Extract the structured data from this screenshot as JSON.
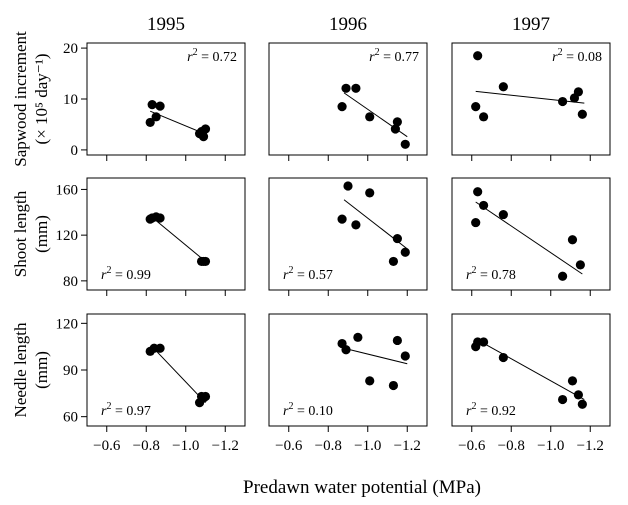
{
  "chart_data": {
    "type": "scatter",
    "xlabel": "Predawn water potential (MPa)",
    "x_ticks": [
      -0.6,
      -0.8,
      -1.0,
      -1.2
    ],
    "xlim": [
      -0.5,
      -1.3
    ],
    "columns": [
      "1995",
      "1996",
      "1997"
    ],
    "rows": [
      {
        "ylabel_lines": [
          "Sapwood  increment",
          "(× 10⁵ day⁻¹)"
        ],
        "y_ticks": [
          0,
          10,
          20
        ],
        "ylim": [
          -1,
          21
        ],
        "r2_position": "top-right",
        "panels": [
          {
            "year": "1995",
            "r2": "0.72",
            "points": [
              [
                -0.82,
                5.4
              ],
              [
                -0.83,
                8.9
              ],
              [
                -0.85,
                6.5
              ],
              [
                -0.87,
                8.6
              ],
              [
                -1.07,
                3.2
              ],
              [
                -1.08,
                3.6
              ],
              [
                -1.09,
                2.6
              ],
              [
                -1.1,
                4.1
              ]
            ],
            "fit": [
              [
                -0.82,
                7.6
              ],
              [
                -1.1,
                3.1
              ]
            ]
          },
          {
            "year": "1996",
            "r2": "0.77",
            "points": [
              [
                -0.87,
                8.5
              ],
              [
                -0.89,
                12.1
              ],
              [
                -0.94,
                12.1
              ],
              [
                -1.01,
                6.5
              ],
              [
                -1.14,
                4.1
              ],
              [
                -1.15,
                5.5
              ],
              [
                -1.19,
                1.1
              ]
            ],
            "fit": [
              [
                -0.88,
                11.2
              ],
              [
                -1.2,
                2.6
              ]
            ]
          },
          {
            "year": "1997",
            "r2": "0.08",
            "points": [
              [
                -0.62,
                8.5
              ],
              [
                -0.63,
                18.5
              ],
              [
                -0.66,
                6.5
              ],
              [
                -0.76,
                12.4
              ],
              [
                -1.06,
                9.5
              ],
              [
                -1.12,
                10.2
              ],
              [
                -1.14,
                11.4
              ],
              [
                -1.16,
                7.0
              ]
            ],
            "fit": [
              [
                -0.62,
                11.5
              ],
              [
                -1.17,
                9.2
              ]
            ]
          }
        ]
      },
      {
        "ylabel_lines": [
          "Shoot length",
          "(mm)"
        ],
        "y_ticks": [
          80,
          120,
          160
        ],
        "ylim": [
          72,
          170
        ],
        "r2_position": "bottom-left",
        "panels": [
          {
            "year": "1995",
            "r2": "0.99",
            "points": [
              [
                -0.82,
                134
              ],
              [
                -0.83,
                135
              ],
              [
                -0.85,
                136
              ],
              [
                -0.87,
                135
              ],
              [
                -1.08,
                97
              ],
              [
                -1.09,
                97
              ],
              [
                -1.1,
                97
              ]
            ],
            "fit": [
              [
                -0.82,
                137
              ],
              [
                -1.1,
                97
              ]
            ]
          },
          {
            "year": "1996",
            "r2": "0.57",
            "points": [
              [
                -0.87,
                134
              ],
              [
                -0.9,
                163
              ],
              [
                -0.94,
                129
              ],
              [
                -1.01,
                157
              ],
              [
                -1.13,
                97
              ],
              [
                -1.15,
                117
              ],
              [
                -1.19,
                105
              ]
            ],
            "fit": [
              [
                -0.88,
                151
              ],
              [
                -1.2,
                108
              ]
            ]
          },
          {
            "year": "1997",
            "r2": "0.78",
            "points": [
              [
                -0.62,
                131
              ],
              [
                -0.63,
                158
              ],
              [
                -0.66,
                146
              ],
              [
                -0.76,
                138
              ],
              [
                -1.06,
                84
              ],
              [
                -1.11,
                116
              ],
              [
                -1.15,
                94
              ]
            ],
            "fit": [
              [
                -0.62,
                149
              ],
              [
                -1.16,
                86
              ]
            ]
          }
        ]
      },
      {
        "ylabel_lines": [
          "Needle length",
          "(mm)"
        ],
        "y_ticks": [
          60,
          90,
          120
        ],
        "ylim": [
          54,
          126
        ],
        "r2_position": "bottom-left",
        "panels": [
          {
            "year": "1995",
            "r2": "0.97",
            "points": [
              [
                -0.82,
                102
              ],
              [
                -0.84,
                104
              ],
              [
                -0.87,
                104
              ],
              [
                -1.07,
                69
              ],
              [
                -1.08,
                73
              ],
              [
                -1.09,
                72
              ],
              [
                -1.1,
                73
              ]
            ],
            "fit": [
              [
                -0.83,
                105
              ],
              [
                -1.1,
                69
              ]
            ]
          },
          {
            "year": "1996",
            "r2": "0.10",
            "points": [
              [
                -0.87,
                107
              ],
              [
                -0.89,
                103
              ],
              [
                -0.95,
                111
              ],
              [
                -1.01,
                83
              ],
              [
                -1.13,
                80
              ],
              [
                -1.15,
                109
              ],
              [
                -1.19,
                99
              ]
            ],
            "fit": [
              [
                -0.88,
                104
              ],
              [
                -1.2,
                94
              ]
            ]
          },
          {
            "year": "1997",
            "r2": "0.92",
            "points": [
              [
                -0.62,
                105
              ],
              [
                -0.63,
                108
              ],
              [
                -0.66,
                108
              ],
              [
                -0.76,
                98
              ],
              [
                -1.06,
                71
              ],
              [
                -1.11,
                83
              ],
              [
                -1.14,
                74
              ],
              [
                -1.16,
                68
              ]
            ],
            "fit": [
              [
                -0.62,
                110
              ],
              [
                -1.17,
                71
              ]
            ]
          }
        ]
      }
    ]
  }
}
